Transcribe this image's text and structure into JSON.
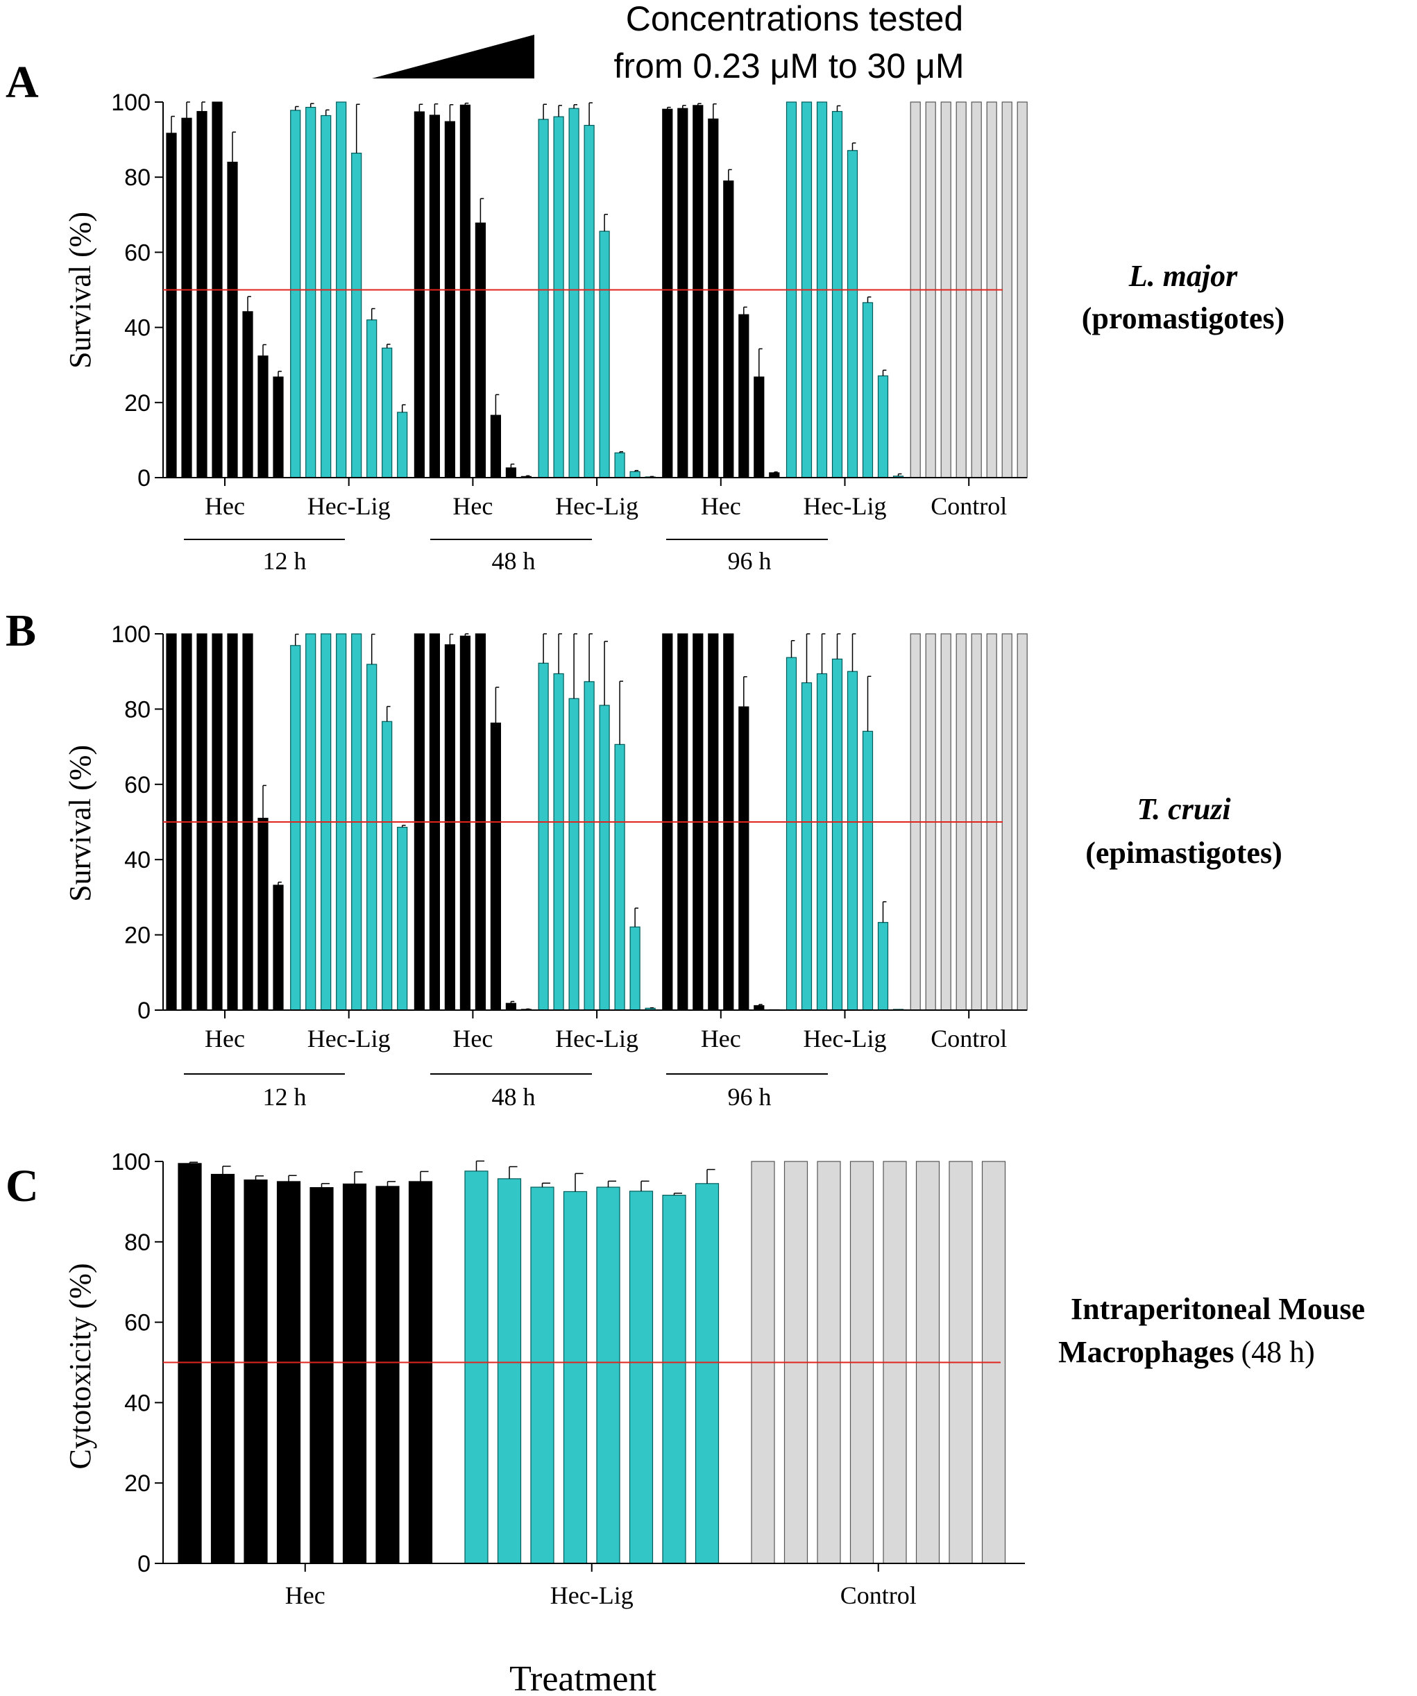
{
  "header": {
    "concentration_line1": "Concentrations tested",
    "concentration_line2": "from 0.23 μM to 30 μM"
  },
  "axis_title_x": "Treatment",
  "colors": {
    "hec": "#000000",
    "hec_lig": "#33c6c6",
    "control": "#d9d9d9",
    "threshold": "#e0251f"
  },
  "chart_data": [
    {
      "panel": "A",
      "type": "bar",
      "ylabel": "Survival (%)",
      "ylim": [
        0,
        100
      ],
      "yticks": [
        0,
        20,
        40,
        60,
        80,
        100
      ],
      "threshold": 50,
      "organism": "L. major",
      "stage": "(promastigotes)",
      "groups": [
        {
          "name": "Hec",
          "series": "hec",
          "values": [
            91.7,
            95.7,
            97.5,
            100,
            84.0,
            44.2,
            32.4,
            26.8
          ],
          "errors": [
            4.5,
            4.3,
            2.5,
            0,
            8.0,
            4.0,
            3.0,
            1.5
          ]
        },
        {
          "name": "Hec-Lig",
          "series": "hec_lig",
          "values": [
            97.8,
            98.6,
            96.4,
            100,
            86.4,
            42.0,
            34.5,
            17.4
          ],
          "errors": [
            1.0,
            1.0,
            1.5,
            0,
            13.0,
            3.0,
            1.0,
            2.0
          ]
        },
        {
          "name": "Hec",
          "series": "hec",
          "values": [
            97.4,
            96.5,
            94.8,
            99.2,
            67.8,
            16.6,
            2.6,
            0.3
          ],
          "errors": [
            2.0,
            3.0,
            4.5,
            0.5,
            6.5,
            5.5,
            1.0,
            0.2
          ]
        },
        {
          "name": "Hec-Lig",
          "series": "hec_lig",
          "values": [
            95.4,
            96.1,
            98.3,
            93.8,
            65.6,
            6.6,
            1.6,
            0.2
          ],
          "errors": [
            4.0,
            3.0,
            1.0,
            6.0,
            4.5,
            0.3,
            0.3,
            0.1
          ]
        },
        {
          "name": "Hec",
          "series": "hec",
          "values": [
            98.1,
            98.3,
            99.1,
            95.5,
            79.0,
            43.4,
            26.8,
            1.3
          ],
          "errors": [
            0.5,
            0.8,
            0.5,
            4.0,
            3.0,
            2.0,
            7.5,
            0.2
          ]
        },
        {
          "name": "Hec-Lig",
          "series": "hec_lig",
          "values": [
            100,
            100,
            100,
            97.5,
            87.1,
            46.6,
            27.1,
            0.4
          ],
          "errors": [
            0,
            0,
            0,
            1.5,
            2.0,
            1.5,
            1.5,
            0.6
          ]
        },
        {
          "name": "Control",
          "series": "control",
          "values": [
            100,
            100,
            100,
            100,
            100,
            100,
            100,
            100
          ],
          "errors": [
            0,
            0,
            0,
            0,
            0,
            0,
            0,
            0
          ]
        }
      ],
      "time_labels": [
        "12 h",
        "48 h",
        "96 h"
      ]
    },
    {
      "panel": "B",
      "type": "bar",
      "ylabel": "Survival (%)",
      "ylim": [
        0,
        100
      ],
      "yticks": [
        0,
        20,
        40,
        60,
        80,
        100
      ],
      "threshold": 50,
      "organism": "T. cruzi",
      "stage": "(epimastigotes)",
      "groups": [
        {
          "name": "Hec",
          "series": "hec",
          "values": [
            100,
            100,
            100,
            100,
            100,
            100,
            51.0,
            33.2
          ],
          "errors": [
            0,
            0,
            0,
            0,
            0,
            0,
            8.7,
            0.8
          ]
        },
        {
          "name": "Hec-Lig",
          "series": "hec_lig",
          "values": [
            96.9,
            100,
            100,
            100,
            100,
            91.9,
            76.7,
            48.6
          ],
          "errors": [
            3.0,
            0,
            0,
            0,
            0,
            8.0,
            4.0,
            0.5
          ]
        },
        {
          "name": "Hec",
          "series": "hec",
          "values": [
            100,
            100,
            97.1,
            99.4,
            100,
            76.3,
            1.8,
            0.2
          ],
          "errors": [
            0,
            0,
            2.8,
            0.6,
            0,
            9.5,
            0.5,
            0.1
          ]
        },
        {
          "name": "Hec-Lig",
          "series": "hec_lig",
          "values": [
            92.2,
            89.4,
            82.8,
            87.3,
            81.0,
            70.6,
            22.1,
            0.5
          ],
          "errors": [
            7.8,
            10.6,
            17.2,
            12.7,
            17.0,
            16.8,
            5.0,
            0.1
          ]
        },
        {
          "name": "Hec",
          "series": "hec",
          "values": [
            100,
            100,
            100,
            100,
            100,
            80.6,
            1.2,
            0.1
          ],
          "errors": [
            0,
            0,
            0,
            0,
            0,
            8.0,
            0.3,
            0
          ]
        },
        {
          "name": "Hec-Lig",
          "series": "hec_lig",
          "values": [
            93.7,
            87.0,
            89.4,
            93.3,
            90.0,
            74.1,
            23.3,
            0.2
          ],
          "errors": [
            4.5,
            13.0,
            10.6,
            6.7,
            10.0,
            14.6,
            5.5,
            0
          ]
        },
        {
          "name": "Control",
          "series": "control",
          "values": [
            100,
            100,
            100,
            100,
            100,
            100,
            100,
            100
          ],
          "errors": [
            0,
            0,
            0,
            0,
            0,
            0,
            0,
            0
          ]
        }
      ],
      "time_labels": [
        "12 h",
        "48 h",
        "96 h"
      ]
    },
    {
      "panel": "C",
      "type": "bar",
      "ylabel": "Cytotoxicity (%)",
      "ylim": [
        0,
        100
      ],
      "yticks": [
        0,
        20,
        40,
        60,
        80,
        100
      ],
      "threshold": 50,
      "organism": "Intraperitoneal Mouse",
      "stage": "Macrophages",
      "stage_suffix": "(48 h)",
      "groups": [
        {
          "name": "Hec",
          "series": "hec",
          "values": [
            99.5,
            96.8,
            95.4,
            95.0,
            93.5,
            94.4,
            93.8,
            95.0
          ],
          "errors": [
            0.3,
            2.0,
            1.0,
            1.5,
            1.0,
            3.0,
            1.2,
            2.5
          ]
        },
        {
          "name": "Hec-Lig",
          "series": "hec_lig",
          "values": [
            97.6,
            95.7,
            93.6,
            92.5,
            93.6,
            92.6,
            91.6,
            94.5
          ],
          "errors": [
            2.5,
            3.0,
            1.0,
            4.5,
            1.5,
            2.5,
            0.5,
            3.5
          ]
        },
        {
          "name": "Control",
          "series": "control",
          "values": [
            100,
            100,
            100,
            100,
            100,
            100,
            100,
            100
          ],
          "errors": [
            0,
            0,
            0,
            0,
            0,
            0,
            0,
            0
          ]
        }
      ]
    }
  ]
}
